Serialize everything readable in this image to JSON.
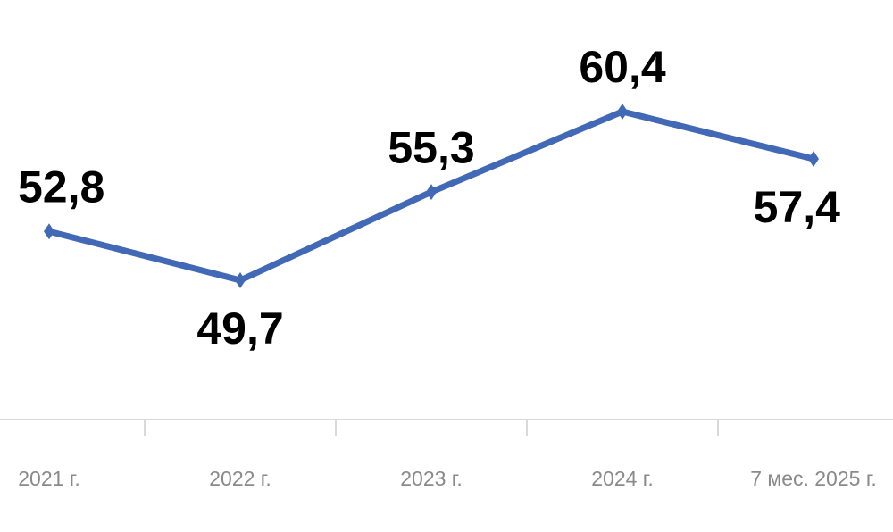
{
  "chart_data": {
    "type": "line",
    "categories": [
      "2021 г.",
      "2022 г.",
      "2023 г.",
      "2024 г.",
      "7 мес. 2025 г."
    ],
    "series": [
      {
        "color": "#4169b5",
        "values": [
          52.8,
          49.7,
          55.3,
          60.4,
          57.4
        ],
        "value_labels": [
          "52,8",
          "49,7",
          "55,3",
          "60,4",
          "57,4"
        ]
      }
    ]
  }
}
